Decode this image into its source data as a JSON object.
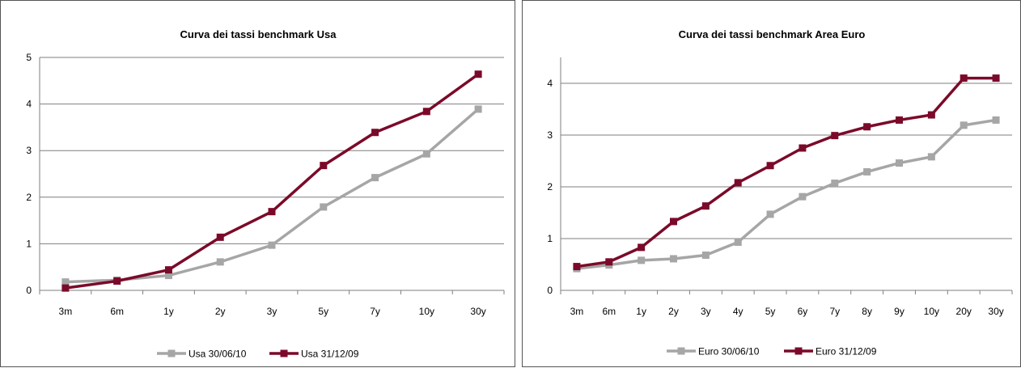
{
  "chart_data": [
    {
      "type": "line",
      "title": "Curva dei tassi  benchmark Usa",
      "categories": [
        "3m",
        "6m",
        "1y",
        "2y",
        "3y",
        "5y",
        "7y",
        "10y",
        "30y"
      ],
      "ylim": [
        0,
        5
      ],
      "yticks": [
        0,
        1,
        2,
        3,
        4,
        5
      ],
      "grid": true,
      "legend_position": "bottom",
      "series": [
        {
          "name": "Usa 30/06/10",
          "color": "#a6a6a6",
          "values": [
            0.18,
            0.22,
            0.32,
            0.61,
            0.97,
            1.79,
            2.42,
            2.93,
            3.89
          ]
        },
        {
          "name": "Usa 31/12/09",
          "color": "#7b0a2a",
          "values": [
            0.05,
            0.2,
            0.44,
            1.14,
            1.69,
            2.68,
            3.39,
            3.84,
            4.64
          ]
        }
      ]
    },
    {
      "type": "line",
      "title": "Curva dei tassi  benchmark Area  Euro",
      "categories": [
        "3m",
        "6m",
        "1y",
        "2y",
        "3y",
        "4y",
        "5y",
        "6y",
        "7y",
        "8y",
        "9y",
        "10y",
        "20y",
        "30y"
      ],
      "ylim": [
        0,
        4.5
      ],
      "yticks": [
        0,
        1,
        2,
        3,
        4
      ],
      "grid": true,
      "legend_position": "bottom",
      "series": [
        {
          "name": "Euro 30/06/10",
          "color": "#a6a6a6",
          "values": [
            0.42,
            0.49,
            0.58,
            0.61,
            0.68,
            0.93,
            1.47,
            1.81,
            2.07,
            2.29,
            2.46,
            2.58,
            3.19,
            3.29
          ]
        },
        {
          "name": "Euro 31/12/09",
          "color": "#7b0a2a",
          "values": [
            0.46,
            0.55,
            0.83,
            1.33,
            1.63,
            2.08,
            2.41,
            2.75,
            2.99,
            3.16,
            3.29,
            3.39,
            4.1,
            4.1
          ]
        }
      ]
    }
  ]
}
